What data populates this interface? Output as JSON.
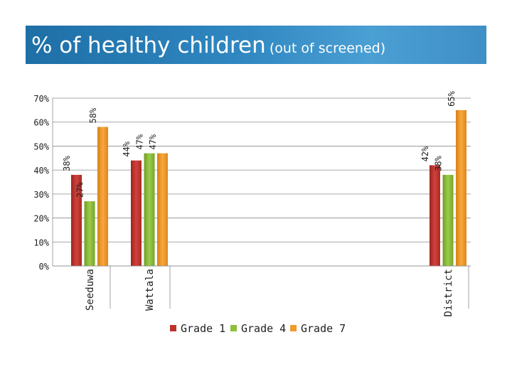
{
  "title": {
    "main": "% of healthy children",
    "sub": "(out of screened)"
  },
  "chart_data": {
    "type": "bar",
    "title": "% of healthy children (out of screened)",
    "categories": [
      "Seeduwa",
      "Wattala",
      "District"
    ],
    "series": [
      {
        "name": "Grade 1",
        "color": "#c0312c",
        "values": [
          38,
          44,
          42
        ],
        "labels": [
          "38%",
          "44%",
          "42%"
        ]
      },
      {
        "name": "Grade 4",
        "color": "#8cbf3a",
        "values": [
          27,
          47,
          38
        ],
        "labels": [
          "27%",
          "47%",
          "38%"
        ]
      },
      {
        "name": "Grade 7",
        "color": "#f39a2c",
        "values": [
          58,
          47,
          65
        ],
        "labels": [
          "58%",
          "47%",
          "65%"
        ]
      }
    ],
    "y_ticks": [
      0,
      10,
      20,
      30,
      40,
      50,
      60,
      70
    ],
    "y_tick_labels": [
      "0%",
      "10%",
      "20%",
      "30%",
      "40%",
      "50%",
      "60%",
      "70%"
    ],
    "ylim": [
      0,
      70
    ],
    "xlabel": "",
    "ylabel": "",
    "grid": true,
    "legend": "bottom"
  }
}
